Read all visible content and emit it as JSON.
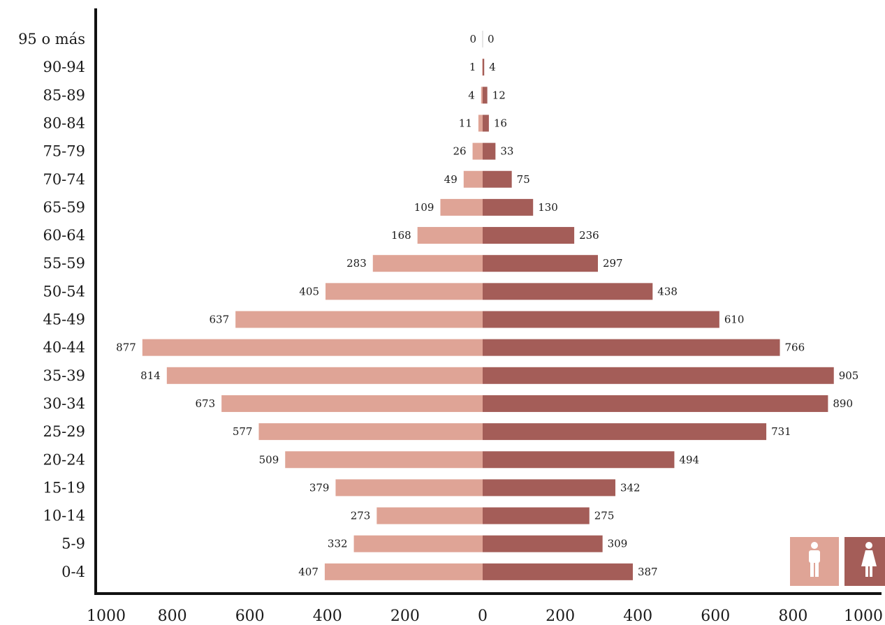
{
  "colors": {
    "male": "#dfa496",
    "female": "#a45d58",
    "axis": "#111111",
    "icon": "#ffffff"
  },
  "legend": {
    "male_icon": "male-icon",
    "female_icon": "female-icon"
  },
  "chart_data": {
    "type": "bar",
    "orientation": "horizontal",
    "title": "",
    "xlabel": "",
    "ylabel": "",
    "xlim": [
      -1000,
      1000
    ],
    "grid": false,
    "legend_position": "bottom-right",
    "x_ticks": [
      {
        "value": -1000,
        "label": "1000"
      },
      {
        "value": -800,
        "label": "800"
      },
      {
        "value": -600,
        "label": "600"
      },
      {
        "value": -400,
        "label": "400"
      },
      {
        "value": -200,
        "label": "200"
      },
      {
        "value": 0,
        "label": "0"
      },
      {
        "value": 200,
        "label": "200"
      },
      {
        "value": 400,
        "label": "400"
      },
      {
        "value": 600,
        "label": "600"
      },
      {
        "value": 800,
        "label": "800"
      },
      {
        "value": 1000,
        "label": "1000"
      }
    ],
    "categories": [
      "95 o más",
      "90-94",
      "85-89",
      "80-84",
      "75-79",
      "70-74",
      "65-59",
      "60-64",
      "55-59",
      "50-54",
      "45-49",
      "40-44",
      "35-39",
      "30-34",
      "25-29",
      "20-24",
      "15-19",
      "10-14",
      "5-9",
      "0-4"
    ],
    "series": [
      {
        "side": "left",
        "values": [
          0,
          1,
          4,
          11,
          26,
          49,
          109,
          168,
          283,
          405,
          637,
          877,
          814,
          673,
          577,
          509,
          379,
          273,
          332,
          407
        ]
      },
      {
        "side": "right",
        "values": [
          0,
          4,
          12,
          16,
          33,
          75,
          130,
          236,
          297,
          438,
          610,
          766,
          905,
          890,
          731,
          494,
          342,
          275,
          309,
          387
        ]
      }
    ]
  }
}
